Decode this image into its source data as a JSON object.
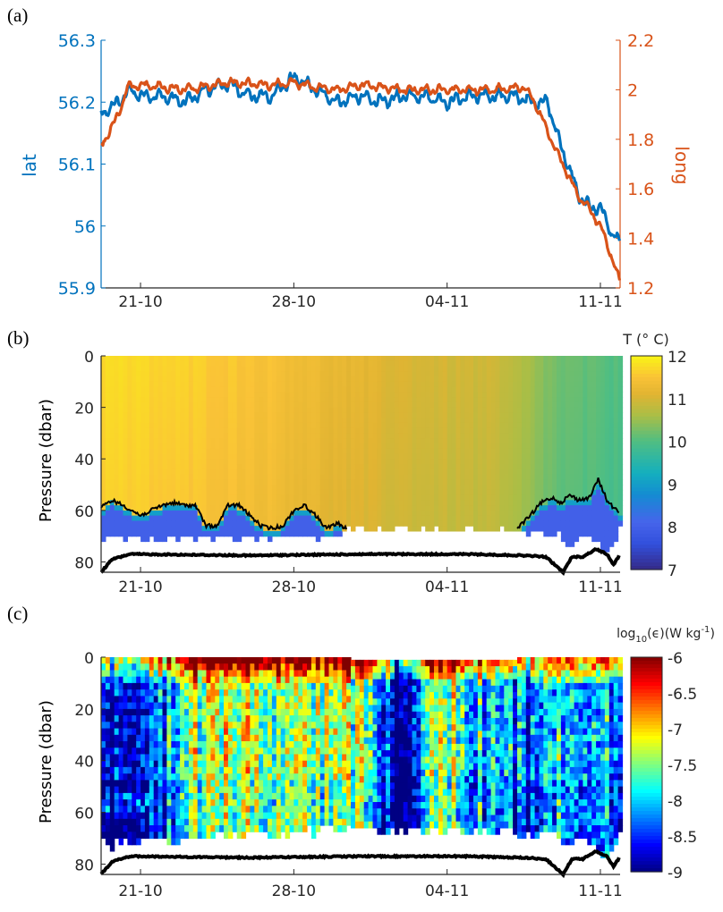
{
  "chart_data": [
    {
      "type": "line",
      "panel_label": "(a)",
      "ylabel": "lat",
      "ylabel_right": "long",
      "x_ticks": [
        {
          "x": 0,
          "label": "21-10"
        },
        {
          "x": 7,
          "label": "28-10"
        },
        {
          "x": 14,
          "label": "04-11"
        },
        {
          "x": 21,
          "label": "11-11"
        }
      ],
      "xlim": [
        -1.8,
        21.9
      ],
      "ylim": [
        55.9,
        56.3
      ],
      "ylim_right": [
        1.2,
        2.2
      ],
      "y_ticks": [
        "55.9",
        "56",
        "56.1",
        "56.2",
        "56.3"
      ],
      "y_ticks_right": [
        "1.2",
        "1.4",
        "1.6",
        "1.8",
        "2",
        "2.2"
      ],
      "colors": {
        "lat": "#0072BD",
        "long": "#D95319"
      },
      "series": [
        {
          "name": "lat",
          "axis": "left",
          "x": [
            -1.8,
            -1,
            -0.5,
            0,
            1,
            2,
            3,
            4,
            5,
            6,
            7,
            8,
            9,
            10,
            11,
            12,
            13,
            14,
            15,
            16,
            17,
            18,
            18.6,
            19,
            19.5,
            20,
            20.5,
            21,
            21.5,
            21.9
          ],
          "y": [
            56.18,
            56.2,
            56.22,
            56.21,
            56.21,
            56.2,
            56.22,
            56.23,
            56.21,
            56.21,
            56.24,
            56.22,
            56.2,
            56.21,
            56.2,
            56.21,
            56.21,
            56.2,
            56.21,
            56.21,
            56.21,
            56.2,
            56.2,
            56.15,
            56.1,
            56.05,
            56.03,
            56.03,
            55.99,
            55.97
          ]
        },
        {
          "name": "long",
          "axis": "right",
          "x": [
            -1.8,
            -1,
            -0.6,
            0,
            2,
            4,
            6,
            7,
            8,
            9,
            10,
            12,
            14,
            16,
            17.5,
            18,
            18.5,
            19,
            19.5,
            20,
            20.5,
            21,
            21.5,
            21.9
          ],
          "y": [
            1.77,
            1.9,
            2.01,
            2.02,
            2.0,
            2.03,
            2.02,
            2.03,
            2.01,
            2.0,
            2.02,
            2.0,
            2.0,
            2.0,
            2.01,
            1.95,
            1.85,
            1.75,
            1.66,
            1.57,
            1.52,
            1.45,
            1.33,
            1.22
          ]
        }
      ]
    },
    {
      "type": "heatmap",
      "panel_label": "(b)",
      "ylabel": "Pressure (dbar)",
      "colorbar_label": "T (° C)",
      "colorbar_ticks": [
        "7",
        "8",
        "9",
        "10",
        "11",
        "12"
      ],
      "clim": [
        7,
        12
      ],
      "ylim": [
        0,
        84
      ],
      "y_ticks": [
        "0",
        "20",
        "40",
        "60",
        "80"
      ],
      "x_ticks": [
        {
          "x": 0,
          "label": "21-10"
        },
        {
          "x": 7,
          "label": "28-10"
        },
        {
          "x": 14,
          "label": "04-11"
        },
        {
          "x": 21,
          "label": "11-11"
        }
      ],
      "xlim": [
        -1.8,
        21.9
      ],
      "surface_temperature": {
        "x": [
          -1.8,
          3,
          6,
          9,
          13,
          16,
          17.5,
          19,
          21.9
        ],
        "T": [
          11.75,
          11.6,
          11.45,
          11.2,
          11.0,
          10.9,
          10.6,
          10.2,
          10.0
        ]
      },
      "bottom_layer_temperature": 8,
      "mixed_layer_depth": [
        {
          "x": [
            -1.8,
            -1.3,
            -0.8,
            0,
            0.5,
            1,
            1.5,
            2,
            2.5,
            3,
            3.5,
            4,
            4.5,
            5,
            5.5,
            6,
            6.5,
            7,
            7.5,
            8,
            8.5,
            9,
            9.4
          ],
          "y": [
            59,
            56,
            58,
            62,
            60,
            58,
            57,
            58,
            58,
            66,
            66,
            58,
            58,
            62,
            66,
            67,
            66,
            60,
            58,
            62,
            67,
            65,
            67
          ]
        },
        {
          "x": [
            17.2,
            17.8,
            18.3,
            18.8,
            19.2,
            19.6,
            20,
            20.5,
            20.9,
            21.3,
            21.6,
            21.9
          ],
          "y": [
            67,
            62,
            57,
            55,
            57,
            54,
            56,
            55,
            48,
            56,
            59,
            61
          ]
        }
      ],
      "profile_bottom": {
        "x": [
          -1.8,
          9,
          9.5,
          17,
          19,
          19.5,
          20,
          20.5,
          21,
          21.5,
          21.9
        ],
        "y": [
          70,
          69,
          66,
          67,
          68,
          74,
          69,
          69,
          74,
          74,
          62
        ]
      },
      "seabed": {
        "x": [
          -1.8,
          -1.3,
          -0.5,
          0,
          5,
          10,
          15,
          17.5,
          18.5,
          19.3,
          19.7,
          20.2,
          20.8,
          21.3,
          21.6,
          21.9
        ],
        "y": [
          84,
          79,
          77,
          77,
          77.5,
          77,
          77,
          77.5,
          78,
          84,
          78,
          78,
          75,
          77,
          81,
          77
        ]
      }
    },
    {
      "type": "heatmap",
      "panel_label": "(c)",
      "ylabel": "Pressure (dbar)",
      "colorbar_label_base": "log",
      "colorbar_label_sub": "10",
      "colorbar_label_rest": "(ϵ)(W kg",
      "colorbar_label_sup": "-1",
      "colorbar_label_end": ")",
      "colorbar_ticks": [
        "-9",
        "-8.5",
        "-8",
        "-7.5",
        "-7",
        "-6.5",
        "-6"
      ],
      "clim": [
        -9,
        -6
      ],
      "ylim": [
        0,
        84
      ],
      "y_ticks": [
        "0",
        "20",
        "40",
        "60",
        "80"
      ],
      "x_ticks": [
        {
          "x": 0,
          "label": "21-10"
        },
        {
          "x": 7,
          "label": "28-10"
        },
        {
          "x": 14,
          "label": "04-11"
        },
        {
          "x": 21,
          "label": "11-11"
        }
      ],
      "xlim": [
        -1.8,
        21.9
      ],
      "column_mean_log_eps": {
        "x": [
          -1.8,
          0,
          1,
          2,
          3,
          5,
          7,
          9,
          10,
          11,
          11.5,
          12,
          13,
          14,
          15,
          16,
          17,
          18,
          19,
          20,
          21,
          21.9
        ],
        "v": [
          -8.8,
          -8.7,
          -8.3,
          -7.6,
          -7.3,
          -7.4,
          -7.3,
          -7.5,
          -7.4,
          -8.3,
          -9,
          -8.8,
          -7.4,
          -7.3,
          -7.8,
          -8.2,
          -8.3,
          -8.5,
          -7.8,
          -8.0,
          -7.7,
          -8.3
        ]
      },
      "profile_bottom": {
        "x": [
          -1.8,
          2,
          9,
          17,
          19,
          19.5,
          20,
          20.5,
          21,
          21.5,
          21.9
        ],
        "y": [
          70,
          68,
          65,
          66,
          68,
          73,
          68,
          70,
          74,
          74,
          64
        ]
      },
      "seabed": {
        "x": [
          -1.8,
          -1.3,
          -0.5,
          0,
          5,
          10,
          15,
          17.5,
          18.5,
          19.3,
          19.7,
          20.2,
          20.8,
          21.3,
          21.6,
          21.9
        ],
        "y": [
          84,
          79,
          77,
          77,
          77.5,
          77,
          77,
          77.5,
          78,
          84,
          78,
          78,
          75,
          77,
          81,
          77
        ]
      }
    }
  ]
}
